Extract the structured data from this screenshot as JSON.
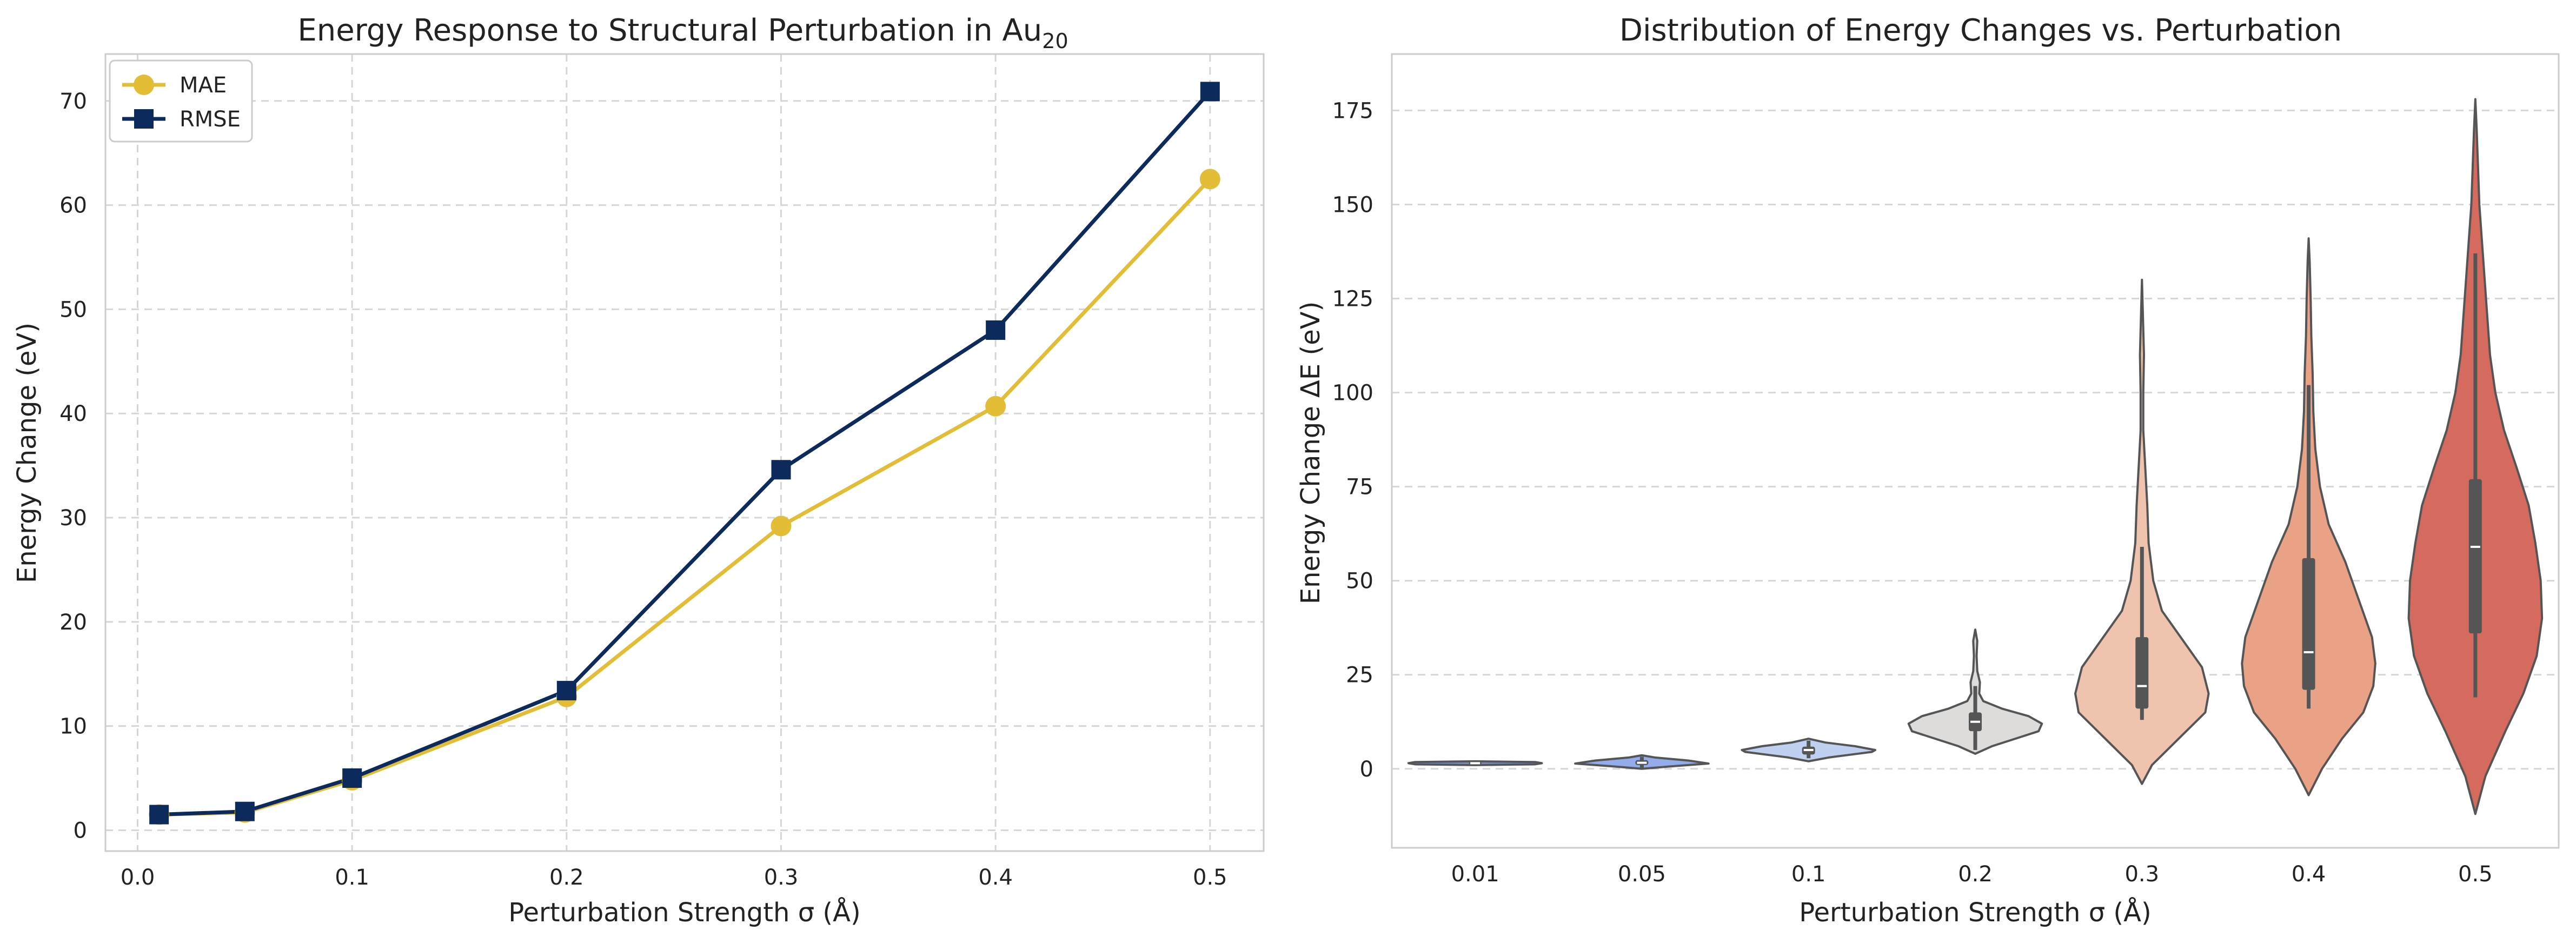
{
  "chart_data": [
    {
      "type": "line",
      "title": "Energy Response to Structural Perturbation in Au",
      "title_subscript": "20",
      "xlabel": "Perturbation Strength σ (Å)",
      "ylabel": "Energy Change (eV)",
      "x": [
        0.01,
        0.05,
        0.1,
        0.2,
        0.3,
        0.4,
        0.5
      ],
      "xlim": [
        -0.015,
        0.525
      ],
      "ylim": [
        -2,
        74.5
      ],
      "xticks": [
        "0.0",
        "0.1",
        "0.2",
        "0.3",
        "0.4",
        "0.5"
      ],
      "yticks": [
        "0",
        "10",
        "20",
        "30",
        "40",
        "50",
        "60",
        "70"
      ],
      "grid": true,
      "legend_position": "top-left",
      "series": [
        {
          "name": "MAE",
          "marker": "circle",
          "color": "#e2bd35",
          "values": [
            1.5,
            1.7,
            4.8,
            12.8,
            29.2,
            40.7,
            62.5
          ]
        },
        {
          "name": "RMSE",
          "marker": "square",
          "color": "#0d2a5c",
          "values": [
            1.5,
            1.8,
            5.0,
            13.4,
            34.6,
            48.0,
            70.9
          ]
        }
      ]
    },
    {
      "type": "violin",
      "title": "Distribution of Energy Changes vs. Perturbation",
      "xlabel": "Perturbation Strength σ (Å)",
      "ylabel": "Energy Change ΔE (eV)",
      "categories": [
        "0.01",
        "0.05",
        "0.1",
        "0.2",
        "0.3",
        "0.4",
        "0.5"
      ],
      "ylim": [
        -21,
        190
      ],
      "yticks": [
        "0",
        "25",
        "50",
        "75",
        "100",
        "125",
        "150",
        "175"
      ],
      "grid": true,
      "violins": [
        {
          "color": "#7a92d6",
          "min": 1.0,
          "max": 2.0,
          "q1": 1.3,
          "median": 1.5,
          "q3": 1.7,
          "whisker_low": 1.1,
          "whisker_high": 1.9,
          "profile": [
            [
              1.0,
              0.0
            ],
            [
              1.2,
              0.9
            ],
            [
              1.5,
              1.0
            ],
            [
              1.8,
              0.9
            ],
            [
              2.0,
              0.0
            ]
          ]
        },
        {
          "color": "#94acec",
          "min": 0.0,
          "max": 3.6,
          "q1": 1.0,
          "median": 1.6,
          "q3": 2.3,
          "whisker_low": 0.3,
          "whisker_high": 3.2,
          "profile": [
            [
              0.0,
              0.0
            ],
            [
              0.6,
              0.4
            ],
            [
              1.4,
              1.0
            ],
            [
              2.2,
              0.7
            ],
            [
              3.0,
              0.2
            ],
            [
              3.6,
              0.0
            ]
          ]
        },
        {
          "color": "#bfd0f1",
          "min": 2.0,
          "max": 8.0,
          "q1": 3.8,
          "median": 5.0,
          "q3": 5.9,
          "whisker_low": 2.8,
          "whisker_high": 7.5,
          "profile": [
            [
              2.0,
              0.0
            ],
            [
              3.0,
              0.3
            ],
            [
              4.5,
              0.95
            ],
            [
              5.0,
              1.0
            ],
            [
              6.0,
              0.7
            ],
            [
              7.0,
              0.25
            ],
            [
              8.0,
              0.0
            ]
          ]
        },
        {
          "color": "#dedcdb",
          "min": 4.0,
          "max": 37.0,
          "q1": 10.0,
          "median": 12.5,
          "q3": 15.0,
          "whisker_low": 5.0,
          "whisker_high": 22.0,
          "profile": [
            [
              4.0,
              0.0
            ],
            [
              6.0,
              0.25
            ],
            [
              8.0,
              0.6
            ],
            [
              10.0,
              0.95
            ],
            [
              12.0,
              1.0
            ],
            [
              14.0,
              0.8
            ],
            [
              16.0,
              0.4
            ],
            [
              18.0,
              0.12
            ],
            [
              20.0,
              0.06
            ],
            [
              23.0,
              0.07
            ],
            [
              26.0,
              0.03
            ],
            [
              30.0,
              0.02
            ],
            [
              34.0,
              0.03
            ],
            [
              37.0,
              0.0
            ]
          ]
        },
        {
          "color": "#f0c3ae",
          "min": -4.0,
          "max": 130.0,
          "q1": 16.0,
          "median": 22.0,
          "q3": 35.0,
          "whisker_low": 13.0,
          "whisker_high": 59.0,
          "profile": [
            [
              -4.0,
              0.0
            ],
            [
              1.0,
              0.15
            ],
            [
              8.0,
              0.55
            ],
            [
              15.0,
              0.95
            ],
            [
              20.0,
              1.0
            ],
            [
              27.0,
              0.9
            ],
            [
              34.0,
              0.62
            ],
            [
              42.0,
              0.3
            ],
            [
              50.0,
              0.17
            ],
            [
              60.0,
              0.1
            ],
            [
              70.0,
              0.08
            ],
            [
              80.0,
              0.05
            ],
            [
              90.0,
              0.02
            ],
            [
              100.0,
              0.02
            ],
            [
              110.0,
              0.03
            ],
            [
              120.0,
              0.015
            ],
            [
              130.0,
              0.0
            ]
          ]
        },
        {
          "color": "#e9a286",
          "min": -7.0,
          "max": 141.0,
          "q1": 21.0,
          "median": 31.0,
          "q3": 56.0,
          "whisker_low": 16.0,
          "whisker_high": 102.0,
          "profile": [
            [
              -7.0,
              0.0
            ],
            [
              0.0,
              0.2
            ],
            [
              8.0,
              0.5
            ],
            [
              15.0,
              0.82
            ],
            [
              22.0,
              0.97
            ],
            [
              28.0,
              1.0
            ],
            [
              35.0,
              0.95
            ],
            [
              45.0,
              0.75
            ],
            [
              55.0,
              0.55
            ],
            [
              65.0,
              0.3
            ],
            [
              75.0,
              0.17
            ],
            [
              85.0,
              0.1
            ],
            [
              95.0,
              0.07
            ],
            [
              105.0,
              0.06
            ],
            [
              115.0,
              0.04
            ],
            [
              125.0,
              0.03
            ],
            [
              135.0,
              0.015
            ],
            [
              141.0,
              0.0
            ]
          ]
        },
        {
          "color": "#d46b5e",
          "min": -12.0,
          "max": 178.0,
          "q1": 36.0,
          "median": 59.0,
          "q3": 77.0,
          "whisker_low": 19.0,
          "whisker_high": 137.0,
          "profile": [
            [
              -12.0,
              0.0
            ],
            [
              -2.0,
              0.15
            ],
            [
              10.0,
              0.45
            ],
            [
              20.0,
              0.72
            ],
            [
              30.0,
              0.92
            ],
            [
              40.0,
              1.0
            ],
            [
              50.0,
              0.98
            ],
            [
              60.0,
              0.9
            ],
            [
              70.0,
              0.8
            ],
            [
              80.0,
              0.62
            ],
            [
              90.0,
              0.43
            ],
            [
              100.0,
              0.3
            ],
            [
              110.0,
              0.22
            ],
            [
              120.0,
              0.18
            ],
            [
              130.0,
              0.14
            ],
            [
              140.0,
              0.1
            ],
            [
              150.0,
              0.06
            ],
            [
              160.0,
              0.04
            ],
            [
              170.0,
              0.02
            ],
            [
              178.0,
              0.0
            ]
          ]
        }
      ]
    }
  ]
}
